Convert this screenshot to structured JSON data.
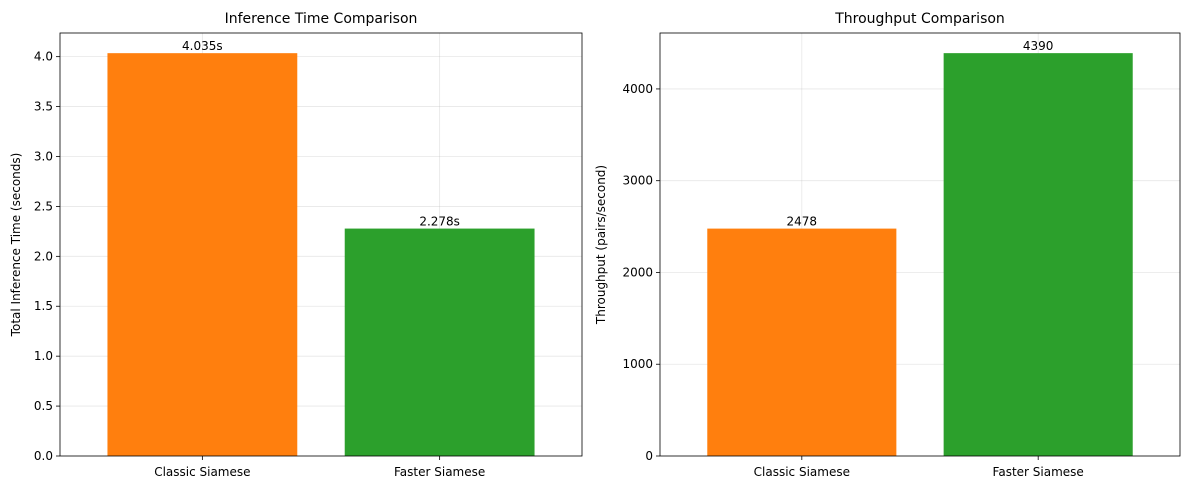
{
  "chart_data": [
    {
      "type": "bar",
      "title": "Inference Time Comparison",
      "xlabel": "",
      "ylabel": "Total Inference Time (seconds)",
      "categories": [
        "Classic Siamese",
        "Faster Siamese"
      ],
      "values": [
        4.035,
        2.278
      ],
      "data_labels": [
        "4.035s",
        "2.278s"
      ],
      "colors": [
        "#ff7f0e",
        "#2ca02c"
      ],
      "ylim": [
        0,
        4.237
      ],
      "yticks": [
        0.0,
        0.5,
        1.0,
        1.5,
        2.0,
        2.5,
        3.0,
        3.5,
        4.0
      ],
      "ytick_labels": [
        "0.0",
        "0.5",
        "1.0",
        "1.5",
        "2.0",
        "2.5",
        "3.0",
        "3.5",
        "4.0"
      ],
      "grid": true
    },
    {
      "type": "bar",
      "title": "Throughput Comparison",
      "xlabel": "",
      "ylabel": "Throughput (pairs/second)",
      "categories": [
        "Classic Siamese",
        "Faster Siamese"
      ],
      "values": [
        2478,
        4390
      ],
      "data_labels": [
        "2478",
        "4390"
      ],
      "colors": [
        "#ff7f0e",
        "#2ca02c"
      ],
      "ylim": [
        0,
        4609.5
      ],
      "yticks": [
        0,
        1000,
        2000,
        3000,
        4000
      ],
      "ytick_labels": [
        "0",
        "1000",
        "2000",
        "3000",
        "4000"
      ],
      "grid": true
    }
  ]
}
